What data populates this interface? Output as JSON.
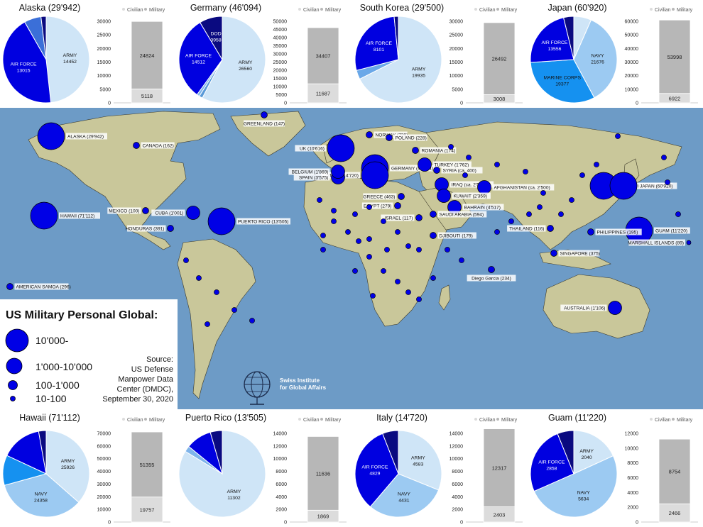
{
  "top_panels": [
    {
      "title": "Alaska (29'942)",
      "pie": [
        {
          "label": "ARMY",
          "value": 14452,
          "color": "#cfe5f7"
        },
        {
          "label": "AIR FORCE",
          "value": 13015,
          "color": "#0000e0"
        },
        {
          "label": "",
          "value": 1900,
          "color": "#3b6fd8"
        },
        {
          "label": "",
          "value": 575,
          "color": "#0a0a80"
        }
      ],
      "bar": {
        "civilian": 5118,
        "military": 24824,
        "ymax": 30000,
        "ticks": [
          0,
          5000,
          10000,
          15000,
          20000,
          25000,
          30000
        ]
      }
    },
    {
      "title": "Germany (46'094)",
      "pie": [
        {
          "label": "ARMY",
          "value": 26560,
          "color": "#cfe5f7"
        },
        {
          "label": "",
          "value": 600,
          "color": "#5a9ad8"
        },
        {
          "label": "",
          "value": 464,
          "color": "#7fb4ea"
        },
        {
          "label": "AIR FORCE",
          "value": 14512,
          "color": "#0000e0"
        },
        {
          "label": "DOD",
          "value": 3958,
          "color": "#0a0a80"
        }
      ],
      "bar": {
        "civilian": 11687,
        "military": 34407,
        "ymax": 50000,
        "ticks": [
          0,
          5000,
          10000,
          15000,
          20000,
          25000,
          30000,
          35000,
          40000,
          45000,
          50000
        ]
      }
    },
    {
      "title": "South Korea (29'500)",
      "pie": [
        {
          "label": "ARMY",
          "value": 19935,
          "color": "#cfe5f7"
        },
        {
          "label": "",
          "value": 1000,
          "color": "#6aa8e8"
        },
        {
          "label": "AIR FORCE",
          "value": 8101,
          "color": "#0000e0"
        },
        {
          "label": "",
          "value": 464,
          "color": "#0a0a80"
        }
      ],
      "bar": {
        "civilian": 3008,
        "military": 26492,
        "ymax": 30000,
        "ticks": [
          0,
          5000,
          10000,
          15000,
          20000,
          25000,
          30000
        ]
      }
    },
    {
      "title": "Japan (60'920)",
      "pie": [
        {
          "label": "",
          "value": 4000,
          "color": "#cfe5f7"
        },
        {
          "label": "NAVY",
          "value": 21676,
          "color": "#9ccaf2"
        },
        {
          "label": "MARINE CORPS",
          "value": 19377,
          "color": "#1591f0"
        },
        {
          "label": "AIR FORCE",
          "value": 13556,
          "color": "#0000e0"
        },
        {
          "label": "",
          "value": 2311,
          "color": "#0a0a80"
        }
      ],
      "bar": {
        "civilian": 6922,
        "military": 53998,
        "ymax": 60000,
        "ticks": [
          0,
          10000,
          20000,
          30000,
          40000,
          50000,
          60000
        ]
      }
    }
  ],
  "bottom_panels": [
    {
      "title": "Hawaii (71'112)",
      "pie": [
        {
          "label": "ARMY",
          "value": 25926,
          "color": "#cfe5f7"
        },
        {
          "label": "NAVY",
          "value": 24358,
          "color": "#9ccaf2"
        },
        {
          "label": "",
          "value": 8000,
          "color": "#1591f0"
        },
        {
          "label": "",
          "value": 10828,
          "color": "#0000e0"
        },
        {
          "label": "",
          "value": 2000,
          "color": "#0a0a80"
        }
      ],
      "bar": {
        "civilian": 19757,
        "military": 51355,
        "ymax": 70000,
        "ticks": [
          0,
          10000,
          20000,
          30000,
          40000,
          50000,
          60000,
          70000
        ]
      }
    },
    {
      "title": "Puerto Rico (13'505)",
      "pie": [
        {
          "label": "ARMY",
          "value": 11302,
          "color": "#cfe5f7"
        },
        {
          "label": "",
          "value": 300,
          "color": "#7fb4ea"
        },
        {
          "label": "",
          "value": 1300,
          "color": "#0000e0"
        },
        {
          "label": "",
          "value": 603,
          "color": "#0a0a80"
        }
      ],
      "bar": {
        "civilian": 1869,
        "military": 11636,
        "ymax": 14000,
        "ticks": [
          0,
          2000,
          4000,
          6000,
          8000,
          10000,
          12000,
          14000
        ]
      }
    },
    {
      "title": "Italy (14'720)",
      "pie": [
        {
          "label": "ARMY",
          "value": 4583,
          "color": "#cfe5f7"
        },
        {
          "label": "NAVY",
          "value": 4431,
          "color": "#9ccaf2"
        },
        {
          "label": "AIR FORCE",
          "value": 4829,
          "color": "#0000e0"
        },
        {
          "label": "",
          "value": 877,
          "color": "#0a0a80"
        }
      ],
      "bar": {
        "civilian": 2403,
        "military": 12317,
        "ymax": 14000,
        "ticks": [
          0,
          2000,
          4000,
          6000,
          8000,
          10000,
          12000,
          14000
        ]
      }
    },
    {
      "title": "Guam (11'220)",
      "pie": [
        {
          "label": "ARMY",
          "value": 2040,
          "color": "#cfe5f7"
        },
        {
          "label": "NAVY",
          "value": 5634,
          "color": "#9ccaf2"
        },
        {
          "label": "AIR FORCE",
          "value": 2858,
          "color": "#0000e0"
        },
        {
          "label": "",
          "value": 688,
          "color": "#0a0a80"
        }
      ],
      "bar": {
        "civilian": 2466,
        "military": 8754,
        "ymax": 12000,
        "ticks": [
          0,
          2000,
          4000,
          6000,
          8000,
          10000,
          12000
        ]
      }
    }
  ],
  "bar_legend": {
    "civilian": "Civilian",
    "military": "Military"
  },
  "colors": {
    "ocean": "#6d9bc6",
    "land": "#c9c79a",
    "bubble": "#0000e6",
    "bar_military": "#b7b7b7",
    "bar_civilian": "#dcdcdc"
  },
  "map_points": [
    {
      "label": "ALASKA (29'942)",
      "size": 4
    },
    {
      "label": "HAWAII (71'112)",
      "size": 4
    },
    {
      "label": "AMERICAN SAMOA (296)",
      "size": 2
    },
    {
      "label": "CANADA (162)",
      "size": 2
    },
    {
      "label": "GREENLAND (147)",
      "size": 2
    },
    {
      "label": "MEXICO (100)",
      "size": 2
    },
    {
      "label": "HONDURAS (391)",
      "size": 2
    },
    {
      "label": "CUBA (1'001)",
      "size": 3
    },
    {
      "label": "PUERTO RICO (13'505)",
      "size": 4
    },
    {
      "label": "UK (10'616)",
      "size": 4
    },
    {
      "label": "NORWAY (739)",
      "size": 2
    },
    {
      "label": "GERMANY (46'094)",
      "size": 4
    },
    {
      "label": "POLAND (228)",
      "size": 2
    },
    {
      "label": "ROMANIA (174)",
      "size": 2
    },
    {
      "label": "TURKEY (1'762)",
      "size": 3
    },
    {
      "label": "SYRIA (ca. 400)",
      "size": 2
    },
    {
      "label": "IRAQ (ca. 2'500)",
      "size": 3
    },
    {
      "label": "AFGHANISTAN (ca. 2'500)",
      "size": 3
    },
    {
      "label": "KUWAIT (2'359)",
      "size": 3
    },
    {
      "label": "BAHRAIN (4'517)",
      "size": 3
    },
    {
      "label": "SAUDI ARABIA (594)",
      "size": 2
    },
    {
      "label": "DJIBOUTI (179)",
      "size": 2
    },
    {
      "label": "ISRAEL (117)",
      "size": 2
    },
    {
      "label": "EGYPT (279)",
      "size": 2
    },
    {
      "label": "GREECE (463)",
      "size": 2
    },
    {
      "label": "ITALY (14'720)",
      "size": 4
    },
    {
      "label": "SPAIN (3'575)",
      "size": 3
    },
    {
      "label": "BELGIUM (1'869)",
      "size": 3
    },
    {
      "label": "SOUTH KOREA (29'500)",
      "size": 4
    },
    {
      "label": "JAPAN (60'920)",
      "size": 4
    },
    {
      "label": "GUAM (11'220)",
      "size": 4
    },
    {
      "label": "PHILIPPINES (195)",
      "size": 2
    },
    {
      "label": "MARSHALL ISLANDS (89)",
      "size": 1
    },
    {
      "label": "THAILAND (116)",
      "size": 2
    },
    {
      "label": "SINGAPORE (375)",
      "size": 2
    },
    {
      "label": "Diego Garcia (234)",
      "size": 2
    },
    {
      "label": "AUSTRALIA (1'106)",
      "size": 3
    }
  ],
  "legend": {
    "title": "US Military Personal Global:",
    "items": [
      "10'000-",
      "1'000-10'000",
      "100-1'000",
      "10-100"
    ],
    "source": [
      "Source:",
      "US Defense",
      "Manpower Data",
      "Center (DMDC),",
      "September 30, 2020"
    ]
  },
  "logo": {
    "lines": [
      "Swiss Institute",
      "for Global Affairs"
    ]
  }
}
